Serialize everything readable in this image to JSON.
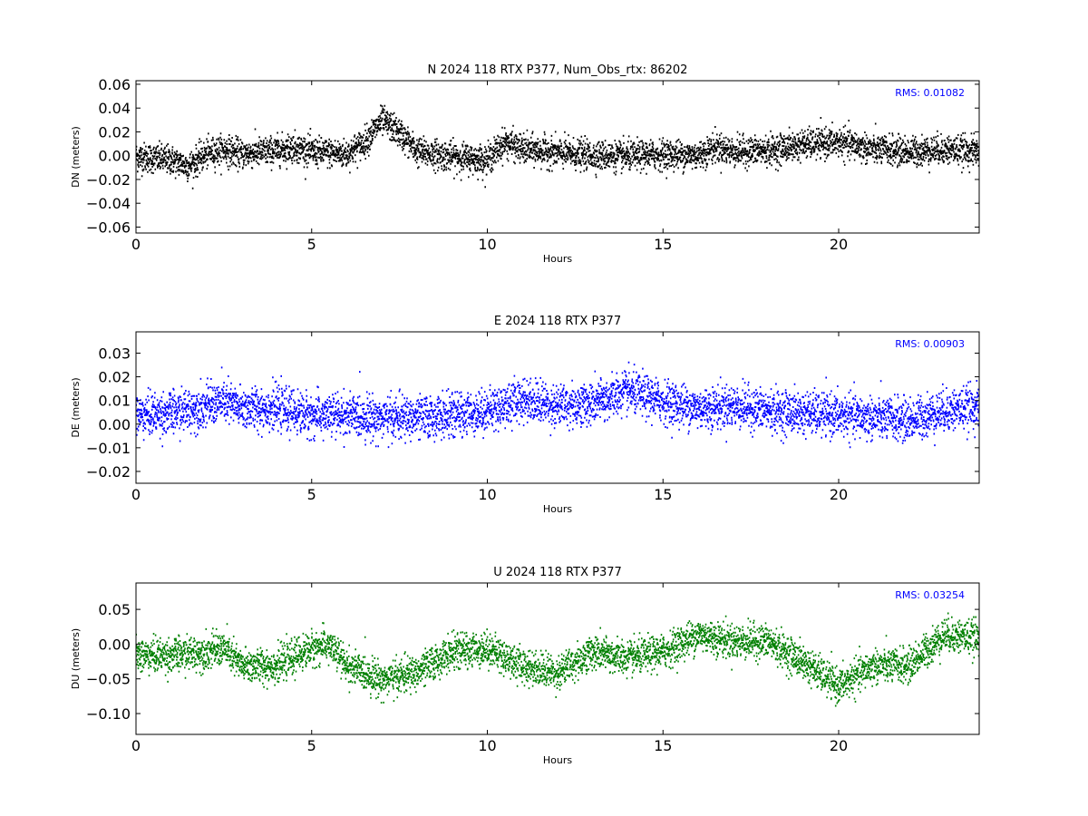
{
  "chart_data": [
    {
      "type": "scatter",
      "component": "N",
      "title": "N 2024 118 RTX  P377, Num_Obs_rtx: 86202",
      "xlabel": "Hours",
      "ylabel": "DN (meters)",
      "xlim": [
        0,
        24
      ],
      "ylim": [
        -0.065,
        0.063
      ],
      "xticks": [
        0,
        5,
        10,
        15,
        20
      ],
      "yticks": [
        -0.06,
        -0.04,
        -0.02,
        0.0,
        0.02,
        0.04,
        0.06
      ],
      "ytick_labels": [
        "−0.06",
        "−0.04",
        "−0.02",
        "0.00",
        "0.02",
        "0.04",
        "0.06"
      ],
      "color": "#000000",
      "annotation": "RMS:  0.01082",
      "annotation_color": "#0000ff",
      "series_trend": {
        "x": [
          0,
          1,
          1.5,
          2,
          2.5,
          3,
          4,
          4.5,
          5,
          6,
          6.5,
          7,
          7.5,
          8,
          9,
          10,
          10.5,
          11,
          12,
          13,
          14,
          15,
          16,
          16.5,
          17,
          18,
          19,
          20,
          21,
          22,
          23,
          24
        ],
        "y": [
          0.0,
          -0.003,
          -0.008,
          0.002,
          0.006,
          0.002,
          0.005,
          0.008,
          0.004,
          0.002,
          0.012,
          0.03,
          0.02,
          0.004,
          0.0,
          -0.003,
          0.012,
          0.006,
          0.003,
          0.001,
          0.0,
          0.002,
          0.001,
          0.008,
          0.004,
          0.005,
          0.01,
          0.012,
          0.006,
          0.004,
          0.006,
          0.004
        ]
      },
      "spread": 0.011
    },
    {
      "type": "scatter",
      "component": "E",
      "title": "E 2024 118 RTX  P377",
      "xlabel": "Hours",
      "ylabel": "DE (meters)",
      "xlim": [
        0,
        24
      ],
      "ylim": [
        -0.025,
        0.039
      ],
      "xticks": [
        0,
        5,
        10,
        15,
        20
      ],
      "yticks": [
        -0.02,
        -0.01,
        0.0,
        0.01,
        0.02,
        0.03
      ],
      "ytick_labels": [
        "−0.02",
        "−0.01",
        "0.00",
        "0.01",
        "0.02",
        "0.03"
      ],
      "color": "#0000ff",
      "annotation": "RMS:  0.00903",
      "annotation_color": "#0000ff",
      "series_trend": {
        "x": [
          0,
          1,
          2,
          2.5,
          3,
          4,
          5,
          6,
          7,
          8,
          9,
          10,
          11,
          12,
          13,
          14,
          15,
          16,
          17,
          18,
          19,
          20,
          21,
          22,
          23,
          24
        ],
        "y": [
          0.004,
          0.005,
          0.008,
          0.01,
          0.007,
          0.007,
          0.004,
          0.004,
          0.003,
          0.003,
          0.004,
          0.006,
          0.011,
          0.008,
          0.009,
          0.014,
          0.01,
          0.007,
          0.008,
          0.006,
          0.005,
          0.004,
          0.003,
          0.002,
          0.006,
          0.008
        ]
      },
      "spread": 0.008
    },
    {
      "type": "scatter",
      "component": "U",
      "title": "U 2024 118 RTX  P377",
      "xlabel": "Hours",
      "ylabel": "DU (meters)",
      "xlim": [
        0,
        24
      ],
      "ylim": [
        -0.13,
        0.088
      ],
      "xticks": [
        0,
        5,
        10,
        15,
        20
      ],
      "yticks": [
        -0.1,
        -0.05,
        0.0,
        0.05
      ],
      "ytick_labels": [
        "−0.10",
        "−0.05",
        "0.00",
        "0.05"
      ],
      "color": "#008000",
      "annotation": "RMS:  0.03254",
      "annotation_color": "#0000ff",
      "series_trend": {
        "x": [
          0,
          1,
          2,
          2.5,
          3,
          4,
          5,
          5.5,
          6,
          7,
          8,
          9,
          10,
          11,
          12,
          13,
          14,
          15,
          16,
          17,
          18,
          19,
          20,
          21,
          22,
          23,
          24
        ],
        "y": [
          -0.015,
          -0.015,
          -0.01,
          -0.005,
          -0.03,
          -0.03,
          -0.005,
          0.0,
          -0.03,
          -0.05,
          -0.04,
          -0.01,
          -0.005,
          -0.03,
          -0.04,
          -0.01,
          -0.02,
          -0.01,
          0.015,
          0.005,
          0.005,
          -0.025,
          -0.06,
          -0.03,
          -0.03,
          0.015,
          0.01
        ]
      },
      "spread": 0.022
    }
  ]
}
